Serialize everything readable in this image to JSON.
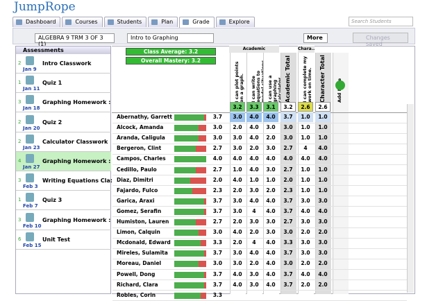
{
  "header": {
    "logo": "JumpRope"
  },
  "tabs": [
    "Dashboard",
    "Courses",
    "Students",
    "Plan",
    "Grade",
    "Explore"
  ],
  "search_placeholder": "Search Students",
  "toolbar": {
    "course": "ALGEBRA 9 TRM 3 OF 3 (1)",
    "unit": "Intro to Graphing",
    "more": "More",
    "status": "Changes saved"
  },
  "assessments": {
    "title": "Assessments",
    "items": [
      {
        "count": "2",
        "date": "Jan 9",
        "title": "Intro Classwork"
      },
      {
        "count": "1",
        "date": "Jan 11",
        "title": "Quiz  1"
      },
      {
        "count": "3",
        "date": "Jan 18",
        "title": "Graphing Homework :"
      },
      {
        "count": "2",
        "date": "Jan 20",
        "title": "Quiz 2"
      },
      {
        "count": "2",
        "date": "Jan 23",
        "title": "Calculator Classwork"
      },
      {
        "count": "4",
        "date": "Jan 27",
        "title": "Graphing Homework :"
      },
      {
        "count": "3",
        "date": "Feb 3",
        "title": "Writing Equations Cla:"
      },
      {
        "count": "1",
        "date": "Feb 7",
        "title": "Quiz 3"
      },
      {
        "count": "3",
        "date": "Feb 10",
        "title": "Graphing Homework :"
      },
      {
        "count": "6",
        "date": "Feb 15",
        "title": "Unit Test"
      }
    ]
  },
  "summary": {
    "class_average": "Class Average: 3.2",
    "overall_mastery": "Overall Mastery: 3.2"
  },
  "groups": [
    "Academic",
    "Chara..."
  ],
  "columns": [
    "I can plot points on a graph.",
    "I can write equations to model situations.",
    "I can use a graphing calculator.",
    "Academic Total",
    "I can complete my work on time.",
    "Character Total",
    "Add More"
  ],
  "averages": [
    "3.2",
    "3.3",
    "3.1",
    "3.2",
    "2.6",
    "2.6"
  ],
  "students": [
    {
      "name": "Abernathy, Garrett",
      "score": "3.7",
      "scores": [
        "3.0",
        "4.0",
        "4.0",
        "3.7",
        "1.0",
        "1.0"
      ]
    },
    {
      "name": "Alcock, Amanda",
      "score": "3.0",
      "scores": [
        "2.0",
        "4.0",
        "3.0",
        "3.0",
        "1.0",
        "1.0"
      ]
    },
    {
      "name": "Aranda, Caligula",
      "score": "3.0",
      "scores": [
        "3.0",
        "4.0",
        "2.0",
        "3.0",
        "1.0",
        "1.0"
      ]
    },
    {
      "name": "Bergeron, Clint",
      "score": "2.7",
      "scores": [
        "3.0",
        "2.0",
        "3.0",
        "2.7",
        "4",
        "4.0"
      ]
    },
    {
      "name": "Campos, Charles",
      "score": "4.0",
      "scores": [
        "4.0",
        "4.0",
        "4.0",
        "4.0",
        "4.0",
        "4.0"
      ]
    },
    {
      "name": "Cedillo, Paulo",
      "score": "2.7",
      "scores": [
        "1.0",
        "4.0",
        "3.0",
        "2.7",
        "1.0",
        "1.0"
      ]
    },
    {
      "name": "Diaz, Dimitri",
      "score": "2.0",
      "scores": [
        "4.0",
        "1.0",
        "1.0",
        "2.0",
        "1.0",
        "1.0"
      ]
    },
    {
      "name": "Fajardo, Fulco",
      "score": "2.3",
      "scores": [
        "2.0",
        "3.0",
        "2.0",
        "2.3",
        "1.0",
        "1.0"
      ]
    },
    {
      "name": "Garica, Araxi",
      "score": "3.7",
      "scores": [
        "3.0",
        "4.0",
        "4.0",
        "3.7",
        "3.0",
        "3.0"
      ]
    },
    {
      "name": "Gomez, Serafin",
      "score": "3.7",
      "scores": [
        "3.0",
        "4",
        "4.0",
        "3.7",
        "4.0",
        "4.0"
      ]
    },
    {
      "name": "Humiston, Lauren",
      "score": "2.7",
      "scores": [
        "2.0",
        "3.0",
        "3.0",
        "2.7",
        "3.0",
        "3.0"
      ]
    },
    {
      "name": "Limon, Calquin",
      "score": "3.0",
      "scores": [
        "4.0",
        "2.0",
        "3.0",
        "3.0",
        "2.0",
        "2.0"
      ]
    },
    {
      "name": "Mcdonald, Edward",
      "score": "3.3",
      "scores": [
        "2.0",
        "4",
        "4.0",
        "3.3",
        "3.0",
        "3.0"
      ]
    },
    {
      "name": "Mireles, Sulamita",
      "score": "3.7",
      "scores": [
        "3.0",
        "4.0",
        "4.0",
        "3.7",
        "3.0",
        "3.0"
      ]
    },
    {
      "name": "Moreau, Daniel",
      "score": "3.0",
      "scores": [
        "3.0",
        "2.0",
        "4.0",
        "3.0",
        "2.0",
        "2.0"
      ]
    },
    {
      "name": "Powell, Dong",
      "score": "3.7",
      "scores": [
        "4.0",
        "3.0",
        "4.0",
        "3.7",
        "4.0",
        "4.0"
      ]
    },
    {
      "name": "Richard, Clara",
      "score": "3.7",
      "scores": [
        "4.0",
        "3.0",
        "4.0",
        "3.7",
        "2.0",
        "2.0"
      ]
    },
    {
      "name": "Robles, Corin",
      "score": "3.3"
    }
  ]
}
